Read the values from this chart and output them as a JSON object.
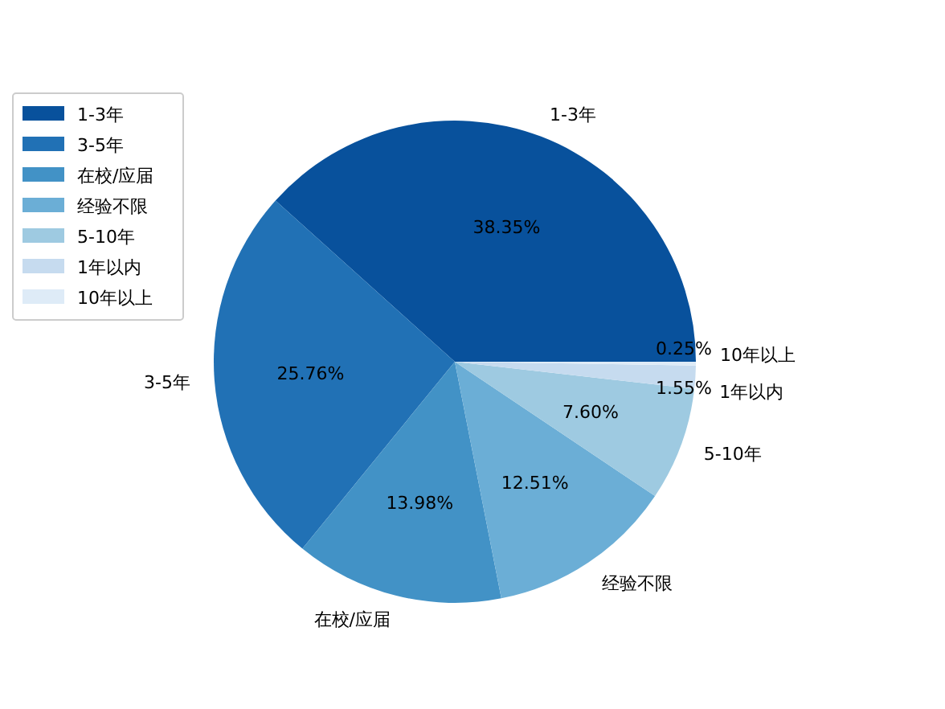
{
  "chart_data": {
    "type": "pie",
    "categories": [
      "1-3年",
      "3-5年",
      "在校/应届",
      "经验不限",
      "5-10年",
      "1年以内",
      "10年以上"
    ],
    "values": [
      38.35,
      25.76,
      13.98,
      12.51,
      7.6,
      1.55,
      0.25
    ],
    "value_labels": [
      "38.35%",
      "25.76%",
      "13.98%",
      "12.51%",
      "7.60%",
      "1.55%",
      "0.25%"
    ],
    "colors": [
      "#08519c",
      "#2171b5",
      "#4292c6",
      "#6baed6",
      "#9ecae1",
      "#c6dbef",
      "#deebf7"
    ],
    "legend": "left"
  }
}
